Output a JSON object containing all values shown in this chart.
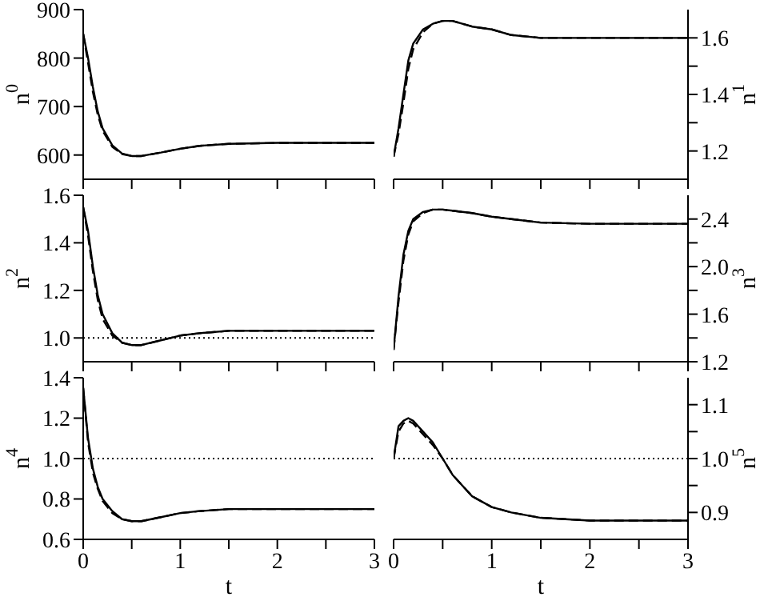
{
  "chart_data": [
    {
      "type": "line",
      "ylabel": "n$^{0}$",
      "xlim": [
        0,
        3
      ],
      "xticks": [
        0,
        {
          "value": 0.5,
          "label": null
        },
        1,
        {
          "value": 1.5,
          "label": null
        },
        2,
        {
          "value": 2.5,
          "label": null
        },
        3
      ],
      "ylim": [
        550,
        900
      ],
      "yticks": [
        600,
        700,
        800,
        900
      ],
      "tick_labels": "y",
      "x": [
        0,
        0.05,
        0.1,
        0.15,
        0.2,
        0.3,
        0.4,
        0.5,
        0.6,
        0.8,
        1.0,
        1.2,
        1.5,
        2,
        2.5,
        3
      ],
      "series": [
        {
          "color": "#000000",
          "line_style": "solid",
          "values": [
            850,
            800,
            740,
            690,
            655,
            620,
            603,
            598,
            598,
            605,
            613,
            619,
            623,
            625,
            625,
            625
          ]
        },
        {
          "color": "#000000",
          "line_style": "dashed",
          "values": [
            850,
            790,
            730,
            683,
            650,
            617,
            602,
            598,
            598,
            605,
            613,
            619,
            623,
            625,
            625,
            625
          ]
        }
      ]
    },
    {
      "type": "line",
      "ylabel": "n$^{1}$",
      "xlim": [
        0,
        3
      ],
      "xticks": [
        0,
        {
          "value": 0.5,
          "label": null
        },
        1,
        {
          "value": 1.5,
          "label": null
        },
        2,
        {
          "value": 2.5,
          "label": null
        },
        3
      ],
      "ylim": [
        1.1,
        1.7
      ],
      "yticks": [
        1.2,
        {
          "value": 1.3,
          "label": null
        },
        1.4,
        {
          "value": 1.5,
          "label": null
        },
        1.6
      ],
      "tick_labels": "y",
      "x": [
        0,
        0.05,
        0.1,
        0.15,
        0.2,
        0.3,
        0.4,
        0.5,
        0.6,
        0.8,
        1.0,
        1.2,
        1.5,
        2,
        2.5,
        3
      ],
      "series": [
        {
          "color": "#000000",
          "line_style": "solid",
          "values": [
            1.18,
            1.28,
            1.4,
            1.52,
            1.58,
            1.63,
            1.65,
            1.66,
            1.66,
            1.64,
            1.63,
            1.61,
            1.6,
            1.6,
            1.6,
            1.6
          ]
        },
        {
          "color": "#000000",
          "line_style": "dashed",
          "values": [
            1.18,
            1.26,
            1.37,
            1.49,
            1.56,
            1.62,
            1.65,
            1.66,
            1.66,
            1.64,
            1.63,
            1.61,
            1.6,
            1.6,
            1.6,
            1.6
          ]
        }
      ]
    },
    {
      "type": "line",
      "ylabel": "n$^{2}$",
      "xlim": [
        0,
        3
      ],
      "xticks": [
        0,
        {
          "value": 0.5,
          "label": null
        },
        1,
        {
          "value": 1.5,
          "label": null
        },
        2,
        {
          "value": 2.5,
          "label": null
        },
        3
      ],
      "ylim": [
        0.9,
        1.6
      ],
      "yticks": [
        {
          "value": 1,
          "label": "1.0"
        },
        1.2,
        1.4,
        1.6
      ],
      "tick_labels": "y",
      "x": [
        0,
        0.05,
        0.1,
        0.15,
        0.2,
        0.3,
        0.4,
        0.5,
        0.6,
        0.8,
        1.0,
        1.2,
        1.5,
        2,
        2.5,
        3
      ],
      "series": [
        {
          "color": "#000000",
          "line_style": "solid",
          "values": [
            1.55,
            1.45,
            1.3,
            1.18,
            1.1,
            1.02,
            0.98,
            0.97,
            0.97,
            0.99,
            1.01,
            1.02,
            1.03,
            1.03,
            1.03,
            1.03
          ]
        },
        {
          "color": "#000000",
          "line_style": "dashed",
          "values": [
            1.55,
            1.43,
            1.28,
            1.16,
            1.08,
            1.01,
            0.98,
            0.97,
            0.97,
            0.99,
            1.01,
            1.02,
            1.03,
            1.03,
            1.03,
            1.03
          ]
        }
      ],
      "ref_lines": [
        {
          "axis": "y",
          "value": 1,
          "line_style": "dotted"
        }
      ]
    },
    {
      "type": "line",
      "ylabel": "n$^{3}$",
      "xlim": [
        0,
        3
      ],
      "xticks": [
        0,
        {
          "value": 0.5,
          "label": null
        },
        1,
        {
          "value": 1.5,
          "label": null
        },
        2,
        {
          "value": 2.5,
          "label": null
        },
        3
      ],
      "ylim": [
        1.2,
        2.6
      ],
      "yticks": [
        1.2,
        {
          "value": 1.4,
          "label": null
        },
        1.6,
        {
          "value": 1.8,
          "label": null
        },
        {
          "value": 2,
          "label": "2.0"
        },
        {
          "value": 2.2,
          "label": null
        },
        2.4
      ],
      "tick_labels": "y",
      "x": [
        0,
        0.05,
        0.1,
        0.15,
        0.2,
        0.3,
        0.4,
        0.5,
        0.6,
        0.8,
        1.0,
        1.2,
        1.5,
        2,
        2.5,
        3
      ],
      "series": [
        {
          "color": "#000000",
          "line_style": "solid",
          "values": [
            1.3,
            1.75,
            2.1,
            2.3,
            2.4,
            2.46,
            2.48,
            2.48,
            2.47,
            2.45,
            2.42,
            2.4,
            2.37,
            2.36,
            2.36,
            2.36
          ]
        },
        {
          "color": "#000000",
          "line_style": "dashed",
          "values": [
            1.3,
            1.7,
            2.05,
            2.27,
            2.38,
            2.45,
            2.48,
            2.48,
            2.47,
            2.45,
            2.42,
            2.4,
            2.37,
            2.36,
            2.36,
            2.36
          ]
        }
      ]
    },
    {
      "type": "line",
      "ylabel": "n$^{4}$",
      "xlabel": "t",
      "xlim": [
        0,
        3
      ],
      "xticks": [
        0,
        {
          "value": 0.5,
          "label": null
        },
        1,
        {
          "value": 1.5,
          "label": null
        },
        2,
        {
          "value": 2.5,
          "label": null
        },
        3
      ],
      "ylim": [
        0.6,
        1.4
      ],
      "yticks": [
        0.6,
        0.8,
        {
          "value": 1,
          "label": "1.0"
        },
        1.2,
        1.4
      ],
      "x": [
        0,
        0.05,
        0.1,
        0.15,
        0.2,
        0.3,
        0.4,
        0.5,
        0.6,
        0.8,
        1.0,
        1.2,
        1.5,
        2,
        2.5,
        3
      ],
      "series": [
        {
          "color": "#000000",
          "line_style": "solid",
          "values": [
            1.35,
            1.1,
            0.95,
            0.86,
            0.8,
            0.74,
            0.7,
            0.69,
            0.69,
            0.71,
            0.73,
            0.74,
            0.75,
            0.75,
            0.75,
            0.75
          ]
        },
        {
          "color": "#000000",
          "line_style": "dashed",
          "values": [
            1.35,
            1.08,
            0.93,
            0.85,
            0.79,
            0.73,
            0.7,
            0.69,
            0.69,
            0.71,
            0.73,
            0.74,
            0.75,
            0.75,
            0.75,
            0.75
          ]
        }
      ],
      "ref_lines": [
        {
          "axis": "y",
          "value": 1,
          "line_style": "dotted"
        }
      ]
    },
    {
      "type": "line",
      "ylabel": "n$^{5}$",
      "xlabel": "t",
      "xlim": [
        0,
        3
      ],
      "xticks": [
        0,
        {
          "value": 0.5,
          "label": null
        },
        1,
        {
          "value": 1.5,
          "label": null
        },
        2,
        {
          "value": 2.5,
          "label": null
        },
        3
      ],
      "ylim": [
        0.85,
        1.15
      ],
      "yticks": [
        0.9,
        {
          "value": 0.95,
          "label": null
        },
        {
          "value": 1,
          "label": "1.0"
        },
        {
          "value": 1.05,
          "label": null
        },
        1.1
      ],
      "x": [
        0,
        0.05,
        0.1,
        0.15,
        0.2,
        0.3,
        0.4,
        0.5,
        0.6,
        0.8,
        1.0,
        1.2,
        1.5,
        2,
        2.5,
        3
      ],
      "series": [
        {
          "color": "#000000",
          "line_style": "solid",
          "values": [
            1.0,
            1.06,
            1.07,
            1.075,
            1.07,
            1.05,
            1.03,
            1.0,
            0.97,
            0.93,
            0.91,
            0.9,
            0.89,
            0.885,
            0.885,
            0.885
          ]
        },
        {
          "color": "#000000",
          "line_style": "dashed",
          "values": [
            1.0,
            1.05,
            1.065,
            1.07,
            1.065,
            1.045,
            1.025,
            1.0,
            0.97,
            0.93,
            0.91,
            0.9,
            0.89,
            0.885,
            0.885,
            0.885
          ]
        }
      ],
      "ref_lines": [
        {
          "axis": "y",
          "value": 1,
          "line_style": "dotted"
        }
      ]
    }
  ]
}
